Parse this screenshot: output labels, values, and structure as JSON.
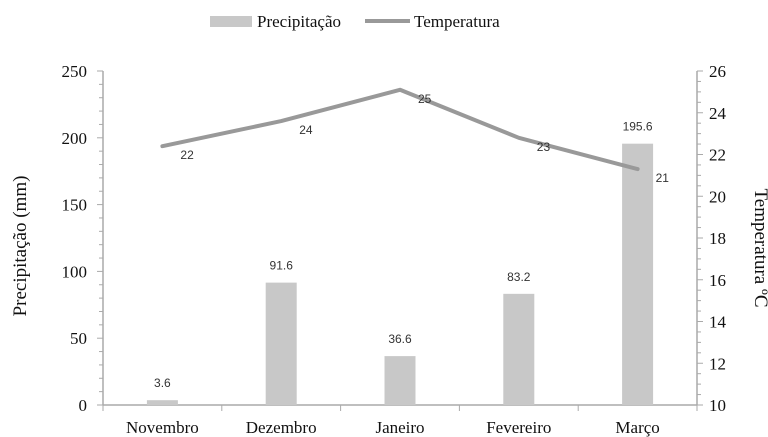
{
  "chart_data": {
    "type": "bar+line",
    "categories": [
      "Novembro",
      "Dezembro",
      "Janeiro",
      "Fevereiro",
      "Março"
    ],
    "series": [
      {
        "name": "Precipitação",
        "type": "bar",
        "axis": "left",
        "values": [
          3.6,
          91.6,
          36.6,
          83.2,
          195.6
        ],
        "labels": [
          "3.6",
          "91.6",
          "36.6",
          "83.2",
          "195.6"
        ],
        "color": "#c8c8c8"
      },
      {
        "name": "Temperatura",
        "type": "line",
        "axis": "right",
        "values": [
          22.4,
          23.6,
          25.1,
          22.8,
          21.3
        ],
        "labels": [
          "22",
          "24",
          "25",
          "23",
          "21"
        ],
        "color": "#999999"
      }
    ],
    "ylabel": "Precipitação (mm)",
    "y2label": "Temperatura ºC",
    "ylim": [
      0,
      250
    ],
    "y2lim": [
      10,
      26
    ],
    "yticks": [
      "0",
      "50",
      "100",
      "150",
      "200",
      "250"
    ],
    "y2ticks": [
      "10",
      "12",
      "14",
      "16",
      "18",
      "20",
      "22",
      "24",
      "26"
    ],
    "grid": false,
    "legend_position": "top-center",
    "axis_color": "#aaaaaa"
  }
}
